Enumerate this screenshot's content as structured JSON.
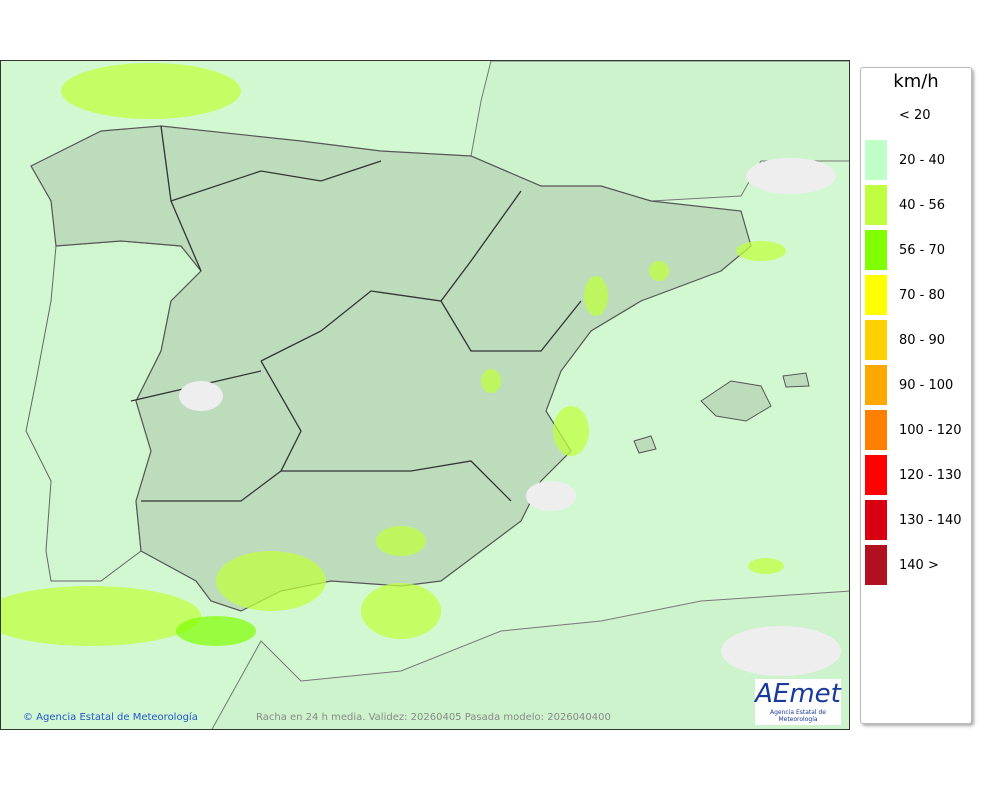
{
  "map": {
    "credit": "© Agencia Estatal de Meteorología",
    "caption": "Racha en 24 h media. Validez: 20260405 Pasada modelo: 2026040400",
    "logo": {
      "name": "AEmet",
      "subtitle": "Agencia Estatal de Meteorología"
    }
  },
  "legend": {
    "unit": "km/h",
    "items": [
      {
        "label": "< 20",
        "color": "#ffffff"
      },
      {
        "label": "20 - 40",
        "color": "#c0ffc8"
      },
      {
        "label": "40 - 56",
        "color": "#c0ff40"
      },
      {
        "label": "56 - 70",
        "color": "#80ff00"
      },
      {
        "label": "70 - 80",
        "color": "#ffff00"
      },
      {
        "label": "80 - 90",
        "color": "#ffd000"
      },
      {
        "label": "90 - 100",
        "color": "#ffa800"
      },
      {
        "label": "100 - 120",
        "color": "#ff8000"
      },
      {
        "label": "120 - 130",
        "color": "#ff0000"
      },
      {
        "label": "130 - 140",
        "color": "#d80010"
      },
      {
        "label": "140 >",
        "color": "#b01020"
      }
    ]
  }
}
